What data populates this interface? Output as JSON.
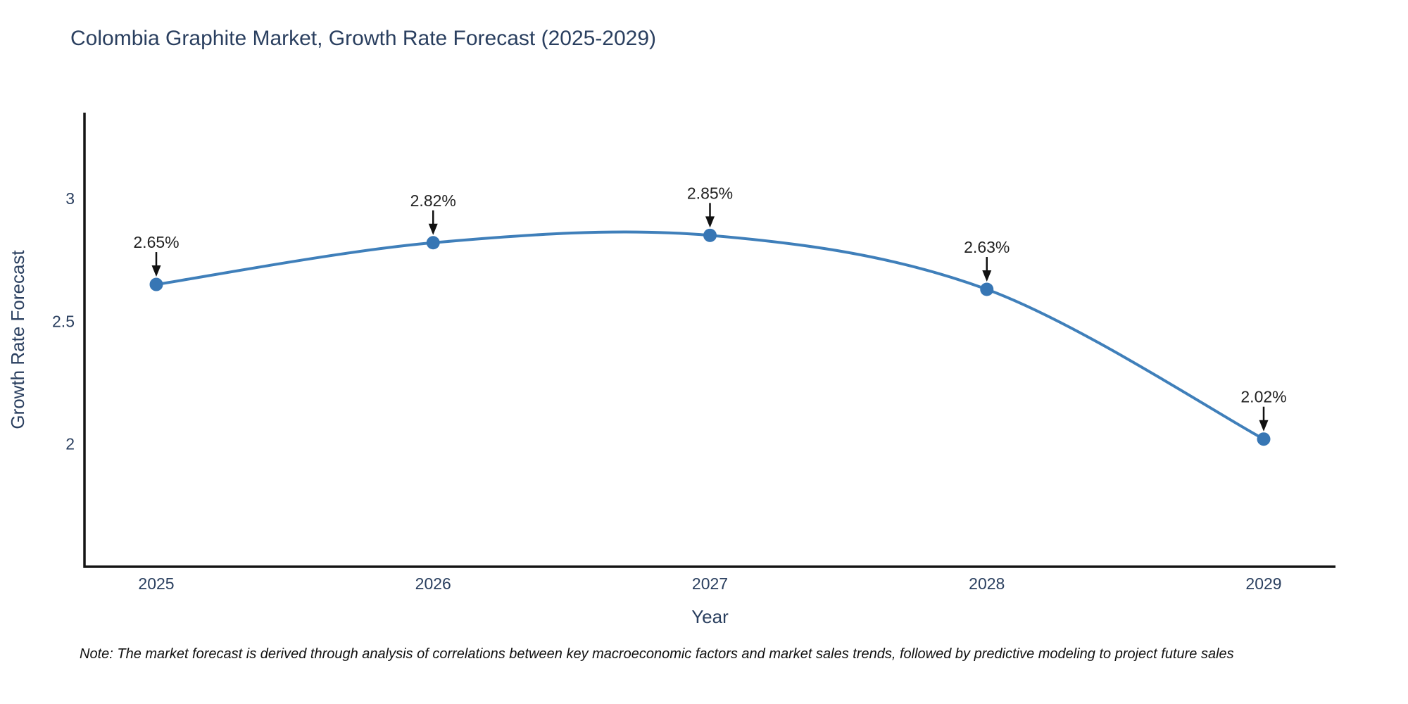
{
  "title": "Colombia Graphite Market, Growth Rate Forecast (2025-2029)",
  "note": "Note: The market forecast is derived through analysis of correlations between key macroeconomic factors and market sales trends, followed by predictive modeling to project future sales",
  "chart_data": {
    "type": "line",
    "title": "Colombia Graphite Market, Growth Rate Forecast (2025-2029)",
    "categories": [
      "2025",
      "2026",
      "2027",
      "2028",
      "2029"
    ],
    "series": [
      {
        "name": "Growth Rate Forecast",
        "values": [
          2.65,
          2.82,
          2.85,
          2.63,
          2.02
        ]
      }
    ],
    "point_labels": [
      "2.65%",
      "2.82%",
      "2.85%",
      "2.63%",
      "2.02%"
    ],
    "xlabel": "Year",
    "ylabel": "Growth Rate Forecast",
    "yticks": [
      3,
      2.5,
      2
    ],
    "ylim": [
      1.5,
      3.35
    ],
    "line_shape": "spline",
    "grid": false,
    "legend": "none",
    "colors": {
      "line": "#3f7fba",
      "marker": "#3776b4",
      "title": "#2a3f5f",
      "axis_text": "#2a3f5f",
      "annotation": "#222222",
      "arrow": "#111111",
      "axis_line": "#141414",
      "background": "#ffffff"
    }
  }
}
